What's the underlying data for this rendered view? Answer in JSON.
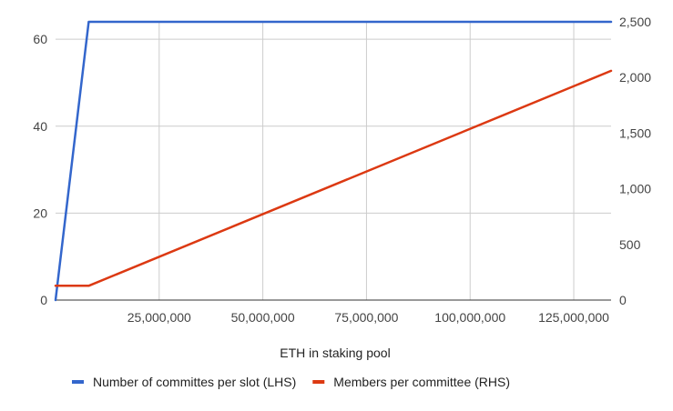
{
  "chart_data": {
    "type": "line",
    "title": "",
    "xlabel": "ETH in staking pool",
    "ylabel_left": "",
    "ylabel_right": "",
    "xlim": [
      0,
      134000000
    ],
    "ylim_left": [
      0,
      64
    ],
    "ylim_right": [
      0,
      2500
    ],
    "x_ticks": [
      25000000,
      50000000,
      75000000,
      100000000,
      125000000
    ],
    "x_tick_labels": [
      "25,000,000",
      "50,000,000",
      "75,000,000",
      "100,000,000",
      "125,000,000"
    ],
    "y_left_ticks": [
      0,
      20,
      40,
      60
    ],
    "y_left_tick_labels": [
      "0",
      "20",
      "40",
      "60"
    ],
    "y_right_ticks": [
      0,
      500,
      1000,
      1500,
      2000,
      2500
    ],
    "y_right_tick_labels": [
      "0",
      "500",
      "1,000",
      "1,500",
      "2,000",
      "2,500"
    ],
    "grid": true,
    "legend_position": "bottom",
    "series": [
      {
        "name": "Number of committes per slot (LHS)",
        "axis": "left",
        "color": "#3366cc",
        "x": [
          0,
          8000000,
          134000000
        ],
        "y": [
          0,
          64,
          64
        ]
      },
      {
        "name": "Members per committee (RHS)",
        "axis": "right",
        "color": "#dc3912",
        "x": [
          0,
          8000000,
          134000000
        ],
        "y": [
          128,
          128,
          2060
        ]
      }
    ]
  }
}
